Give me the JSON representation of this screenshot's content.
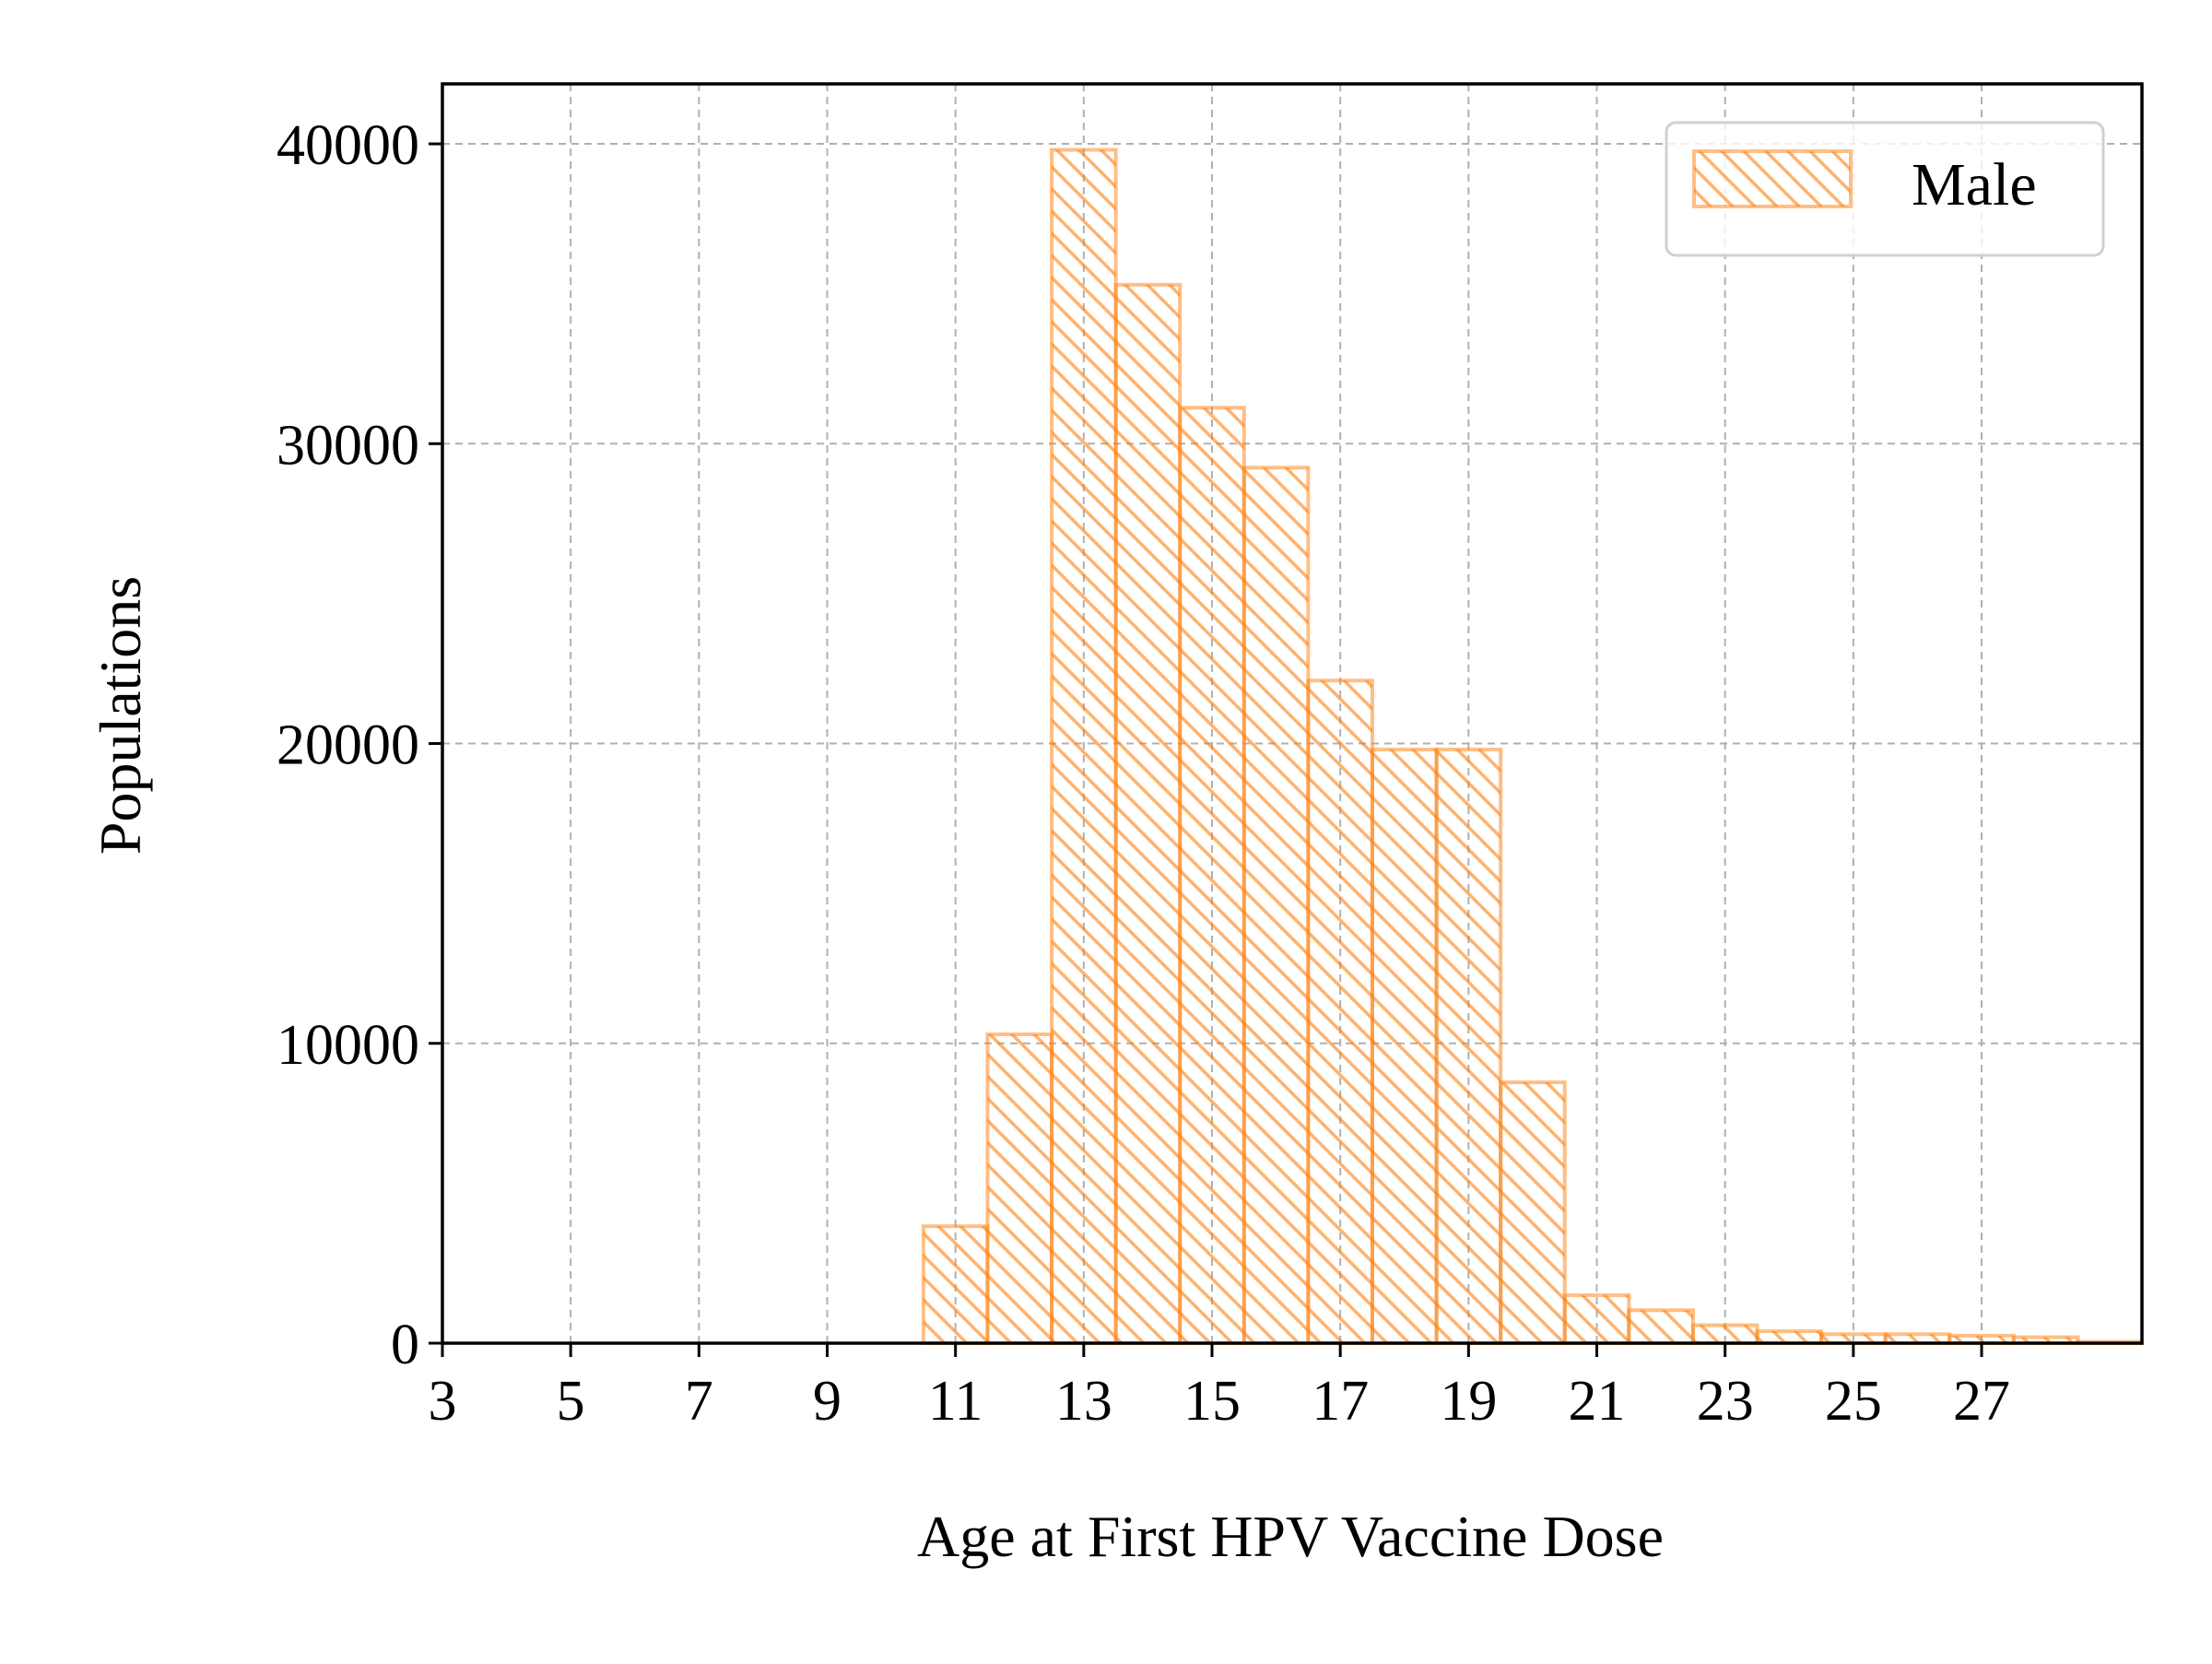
{
  "chart_data": {
    "type": "bar",
    "xlabel": "Age at First HPV Vaccine Dose",
    "ylabel": "Populations",
    "xlim": [
      3,
      29.5
    ],
    "ylim": [
      0,
      42000
    ],
    "xticks": [
      3,
      5,
      7,
      9,
      11,
      13,
      15,
      17,
      19,
      21,
      23,
      25,
      27
    ],
    "yticks": [
      0,
      10000,
      20000,
      30000,
      40000
    ],
    "grid": true,
    "legend_position": "top-right",
    "bar_width": 1,
    "series": [
      {
        "name": "Male",
        "color": "#ff7f0e",
        "hatch": "diagonal",
        "x": [
          9,
          10,
          11,
          12,
          13,
          14,
          15,
          16,
          17,
          18,
          19,
          20,
          21,
          22,
          23,
          24,
          25,
          26,
          27,
          28
        ],
        "values": [
          0,
          3900,
          10300,
          39800,
          35300,
          31200,
          29200,
          22100,
          19800,
          19800,
          8700,
          1600,
          1100,
          600,
          400,
          300,
          300,
          250,
          200,
          50
        ]
      }
    ]
  }
}
